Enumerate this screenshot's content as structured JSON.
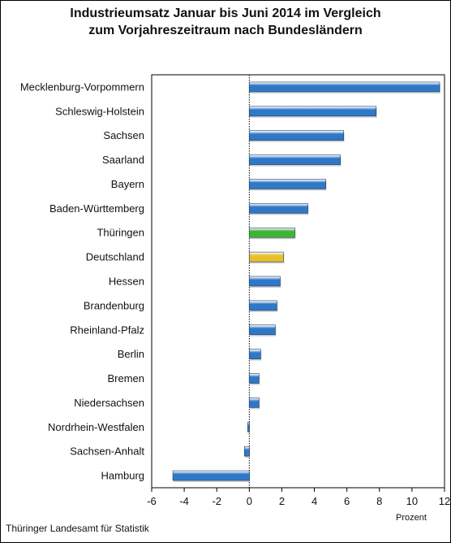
{
  "chart_data": {
    "type": "bar",
    "orientation": "horizontal",
    "title": "Industrieumsatz Januar bis Juni 2014  im Vergleich",
    "subtitle": "zum Vorjahreszeitraum nach Bundesländern",
    "categories": [
      "Mecklenburg-Vorpommern",
      "Schleswig-Holstein",
      "Sachsen",
      "Saarland",
      "Bayern",
      "Baden-Württemberg",
      "Thüringen",
      "Deutschland",
      "Hessen",
      "Brandenburg",
      "Rheinland-Pfalz",
      "Berlin",
      "Bremen",
      "Niedersachsen",
      "Nordrhein-Westfalen",
      "Sachsen-Anhalt",
      "Hamburg"
    ],
    "values": [
      11.7,
      7.8,
      5.8,
      5.6,
      4.7,
      3.6,
      2.8,
      2.1,
      1.9,
      1.7,
      1.6,
      0.7,
      0.6,
      0.6,
      -0.1,
      -0.3,
      -4.7
    ],
    "colors": [
      "#2f78c8",
      "#2f78c8",
      "#2f78c8",
      "#2f78c8",
      "#2f78c8",
      "#2f78c8",
      "#3fb535",
      "#e8c12a",
      "#2f78c8",
      "#2f78c8",
      "#2f78c8",
      "#2f78c8",
      "#2f78c8",
      "#2f78c8",
      "#2f78c8",
      "#2f78c8",
      "#2f78c8"
    ],
    "xlim": [
      -6,
      12
    ],
    "xticks": [
      -6,
      -4,
      -2,
      0,
      2,
      4,
      6,
      8,
      10,
      12
    ],
    "xlabel": "Prozent",
    "grid": false,
    "legend": "none"
  },
  "source": "Thüringer Landesamt für Statistik"
}
